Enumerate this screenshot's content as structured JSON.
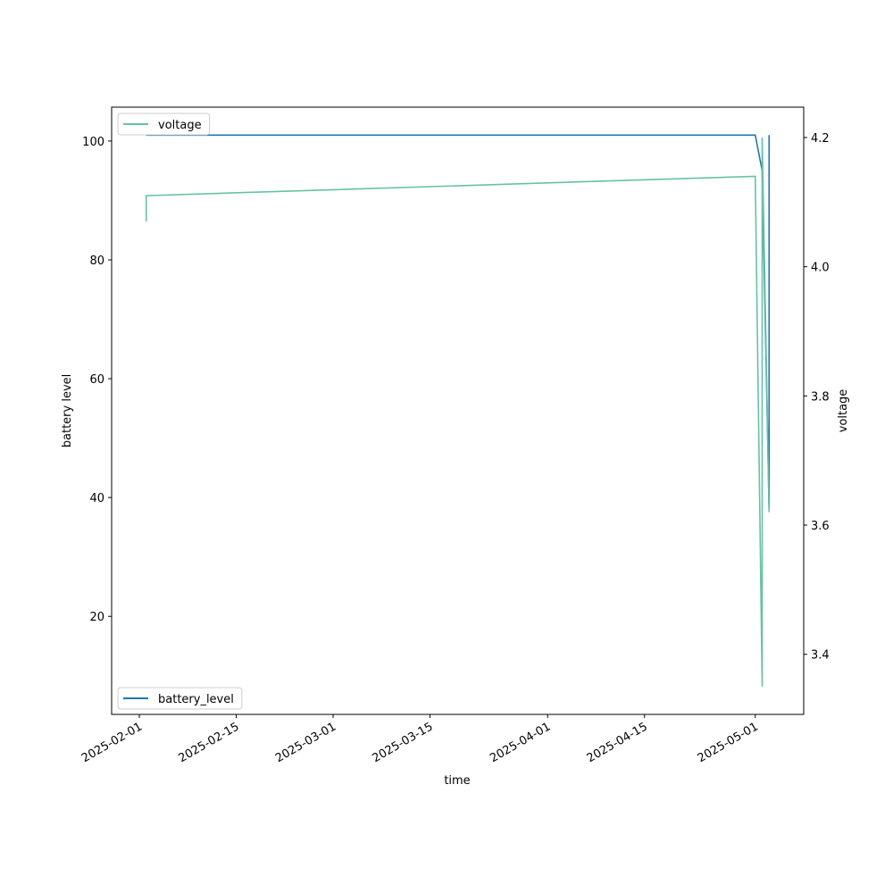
{
  "chart_data": {
    "type": "line",
    "x_label": "time",
    "y_label": "battery level",
    "y2_label": "voltage",
    "xlim": [
      "2025-01-28",
      "2025-05-08"
    ],
    "xticks": [
      "2025-02-01",
      "2025-02-15",
      "2025-03-01",
      "2025-03-15",
      "2025-04-01",
      "2025-04-15",
      "2025-05-01"
    ],
    "ylim": [
      3.5,
      105.7
    ],
    "yticks": [
      20,
      40,
      60,
      80,
      100
    ],
    "y2lim": [
      3.307,
      4.247
    ],
    "y2ticks": [
      3.4,
      3.6,
      3.8,
      {
        "value": 4,
        "label": "4.0"
      },
      4.2
    ],
    "series": [
      {
        "name": "battery_level",
        "color": "#1f77b4",
        "axis": "y",
        "legend": "lower left",
        "x": [
          "2025-02-02",
          "2025-05-01",
          "2025-05-02",
          "2025-05-03",
          "2025-05-03"
        ],
        "values": [
          101,
          101,
          95,
          38,
          101
        ]
      },
      {
        "name": "voltage",
        "color": "#66c2a5",
        "axis": "y2",
        "legend": "upper left",
        "x": [
          "2025-02-02",
          "2025-02-02",
          "2025-05-01",
          "2025-05-02",
          "2025-05-02",
          "2025-05-03"
        ],
        "values": [
          4.07,
          4.11,
          4.14,
          3.35,
          4.2,
          3.62
        ]
      }
    ]
  }
}
